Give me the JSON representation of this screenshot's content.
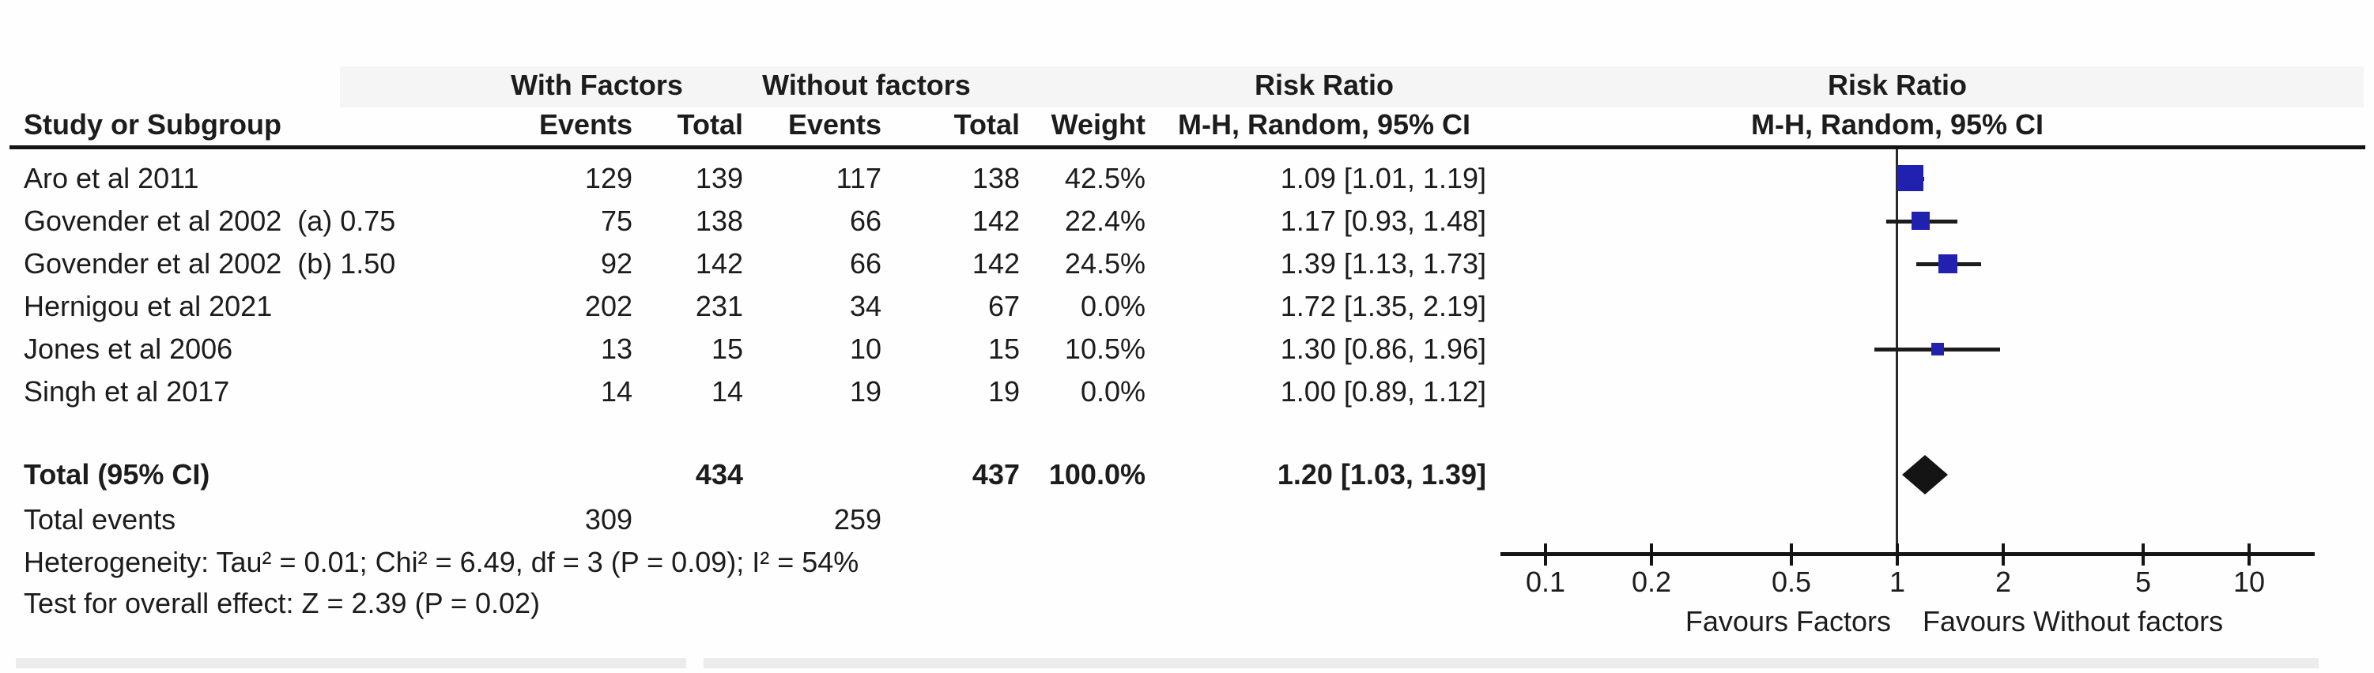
{
  "header": {
    "group_with": "With Factors",
    "group_without": "Without factors",
    "risk_ratio_left": "Risk Ratio",
    "risk_ratio_right": "Risk Ratio",
    "study_col": "Study or Subgroup",
    "events_with": "Events",
    "total_with": "Total",
    "events_without": "Events",
    "total_without": "Total",
    "weight": "Weight",
    "mh_left": "M-H, Random, 95% CI",
    "mh_right": "M-H, Random, 95% CI"
  },
  "chart_data": {
    "type": "table",
    "subtype": "forest-plot (meta-analysis of risk ratios)",
    "effect_measure": "Risk Ratio",
    "method": "M-H, Random, 95% CI",
    "x_axis": {
      "scale": "log10",
      "range": [
        0.1,
        10
      ],
      "ticks": [
        0.1,
        0.2,
        0.5,
        1,
        2,
        5,
        10
      ],
      "tick_labels": [
        "0.1",
        "0.2",
        "0.5",
        "1",
        "2",
        "5",
        "10"
      ]
    },
    "favours_left": "Favours Factors",
    "favours_right": "Favours Without factors",
    "studies": [
      {
        "name": "Aro et al 2011",
        "events_with": "129",
        "total_with": "139",
        "events_without": "117",
        "total_without": "138",
        "weight": "42.5%",
        "weight_pct": 42.5,
        "rr_text": "1.09 [1.01, 1.19]",
        "rr": 1.09,
        "ci_low": 1.01,
        "ci_high": 1.19
      },
      {
        "name": "Govender et al 2002  (a) 0.75",
        "events_with": "75",
        "total_with": "138",
        "events_without": "66",
        "total_without": "142",
        "weight": "22.4%",
        "weight_pct": 22.4,
        "rr_text": "1.17 [0.93, 1.48]",
        "rr": 1.17,
        "ci_low": 0.93,
        "ci_high": 1.48
      },
      {
        "name": "Govender et al 2002  (b) 1.50",
        "events_with": "92",
        "total_with": "142",
        "events_without": "66",
        "total_without": "142",
        "weight": "24.5%",
        "weight_pct": 24.5,
        "rr_text": "1.39 [1.13, 1.73]",
        "rr": 1.39,
        "ci_low": 1.13,
        "ci_high": 1.73
      },
      {
        "name": "Hernigou et al 2021",
        "events_with": "202",
        "total_with": "231",
        "events_without": "34",
        "total_without": "67",
        "weight": "0.0%",
        "weight_pct": 0,
        "rr_text": "1.72 [1.35, 2.19]",
        "rr": 1.72,
        "ci_low": 1.35,
        "ci_high": 2.19
      },
      {
        "name": "Jones et al 2006",
        "events_with": "13",
        "total_with": "15",
        "events_without": "10",
        "total_without": "15",
        "weight": "10.5%",
        "weight_pct": 10.5,
        "rr_text": "1.30 [0.86, 1.96]",
        "rr": 1.3,
        "ci_low": 0.86,
        "ci_high": 1.96
      },
      {
        "name": "Singh et al 2017",
        "events_with": "14",
        "total_with": "14",
        "events_without": "19",
        "total_without": "19",
        "weight": "0.0%",
        "weight_pct": 0,
        "rr_text": "1.00 [0.89, 1.12]",
        "rr": 1.0,
        "ci_low": 0.89,
        "ci_high": 1.12
      }
    ],
    "total": {
      "label": "Total (95% CI)",
      "total_with": "434",
      "total_without": "437",
      "weight": "100.0%",
      "rr_text": "1.20 [1.03, 1.39]",
      "rr": 1.2,
      "ci_low": 1.03,
      "ci_high": 1.39
    },
    "total_events": {
      "label": "Total events",
      "events_with": "309",
      "events_without": "259"
    },
    "heterogeneity": "Heterogeneity: Tau² = 0.01; Chi² = 6.49, df = 3 (P = 0.09); I² = 54%",
    "overall_effect": "Test for overall effect: Z = 2.39 (P = 0.02)",
    "colors": {
      "marker": "#2121b0",
      "diamond": "#141414",
      "line": "#1c1c1c"
    }
  }
}
